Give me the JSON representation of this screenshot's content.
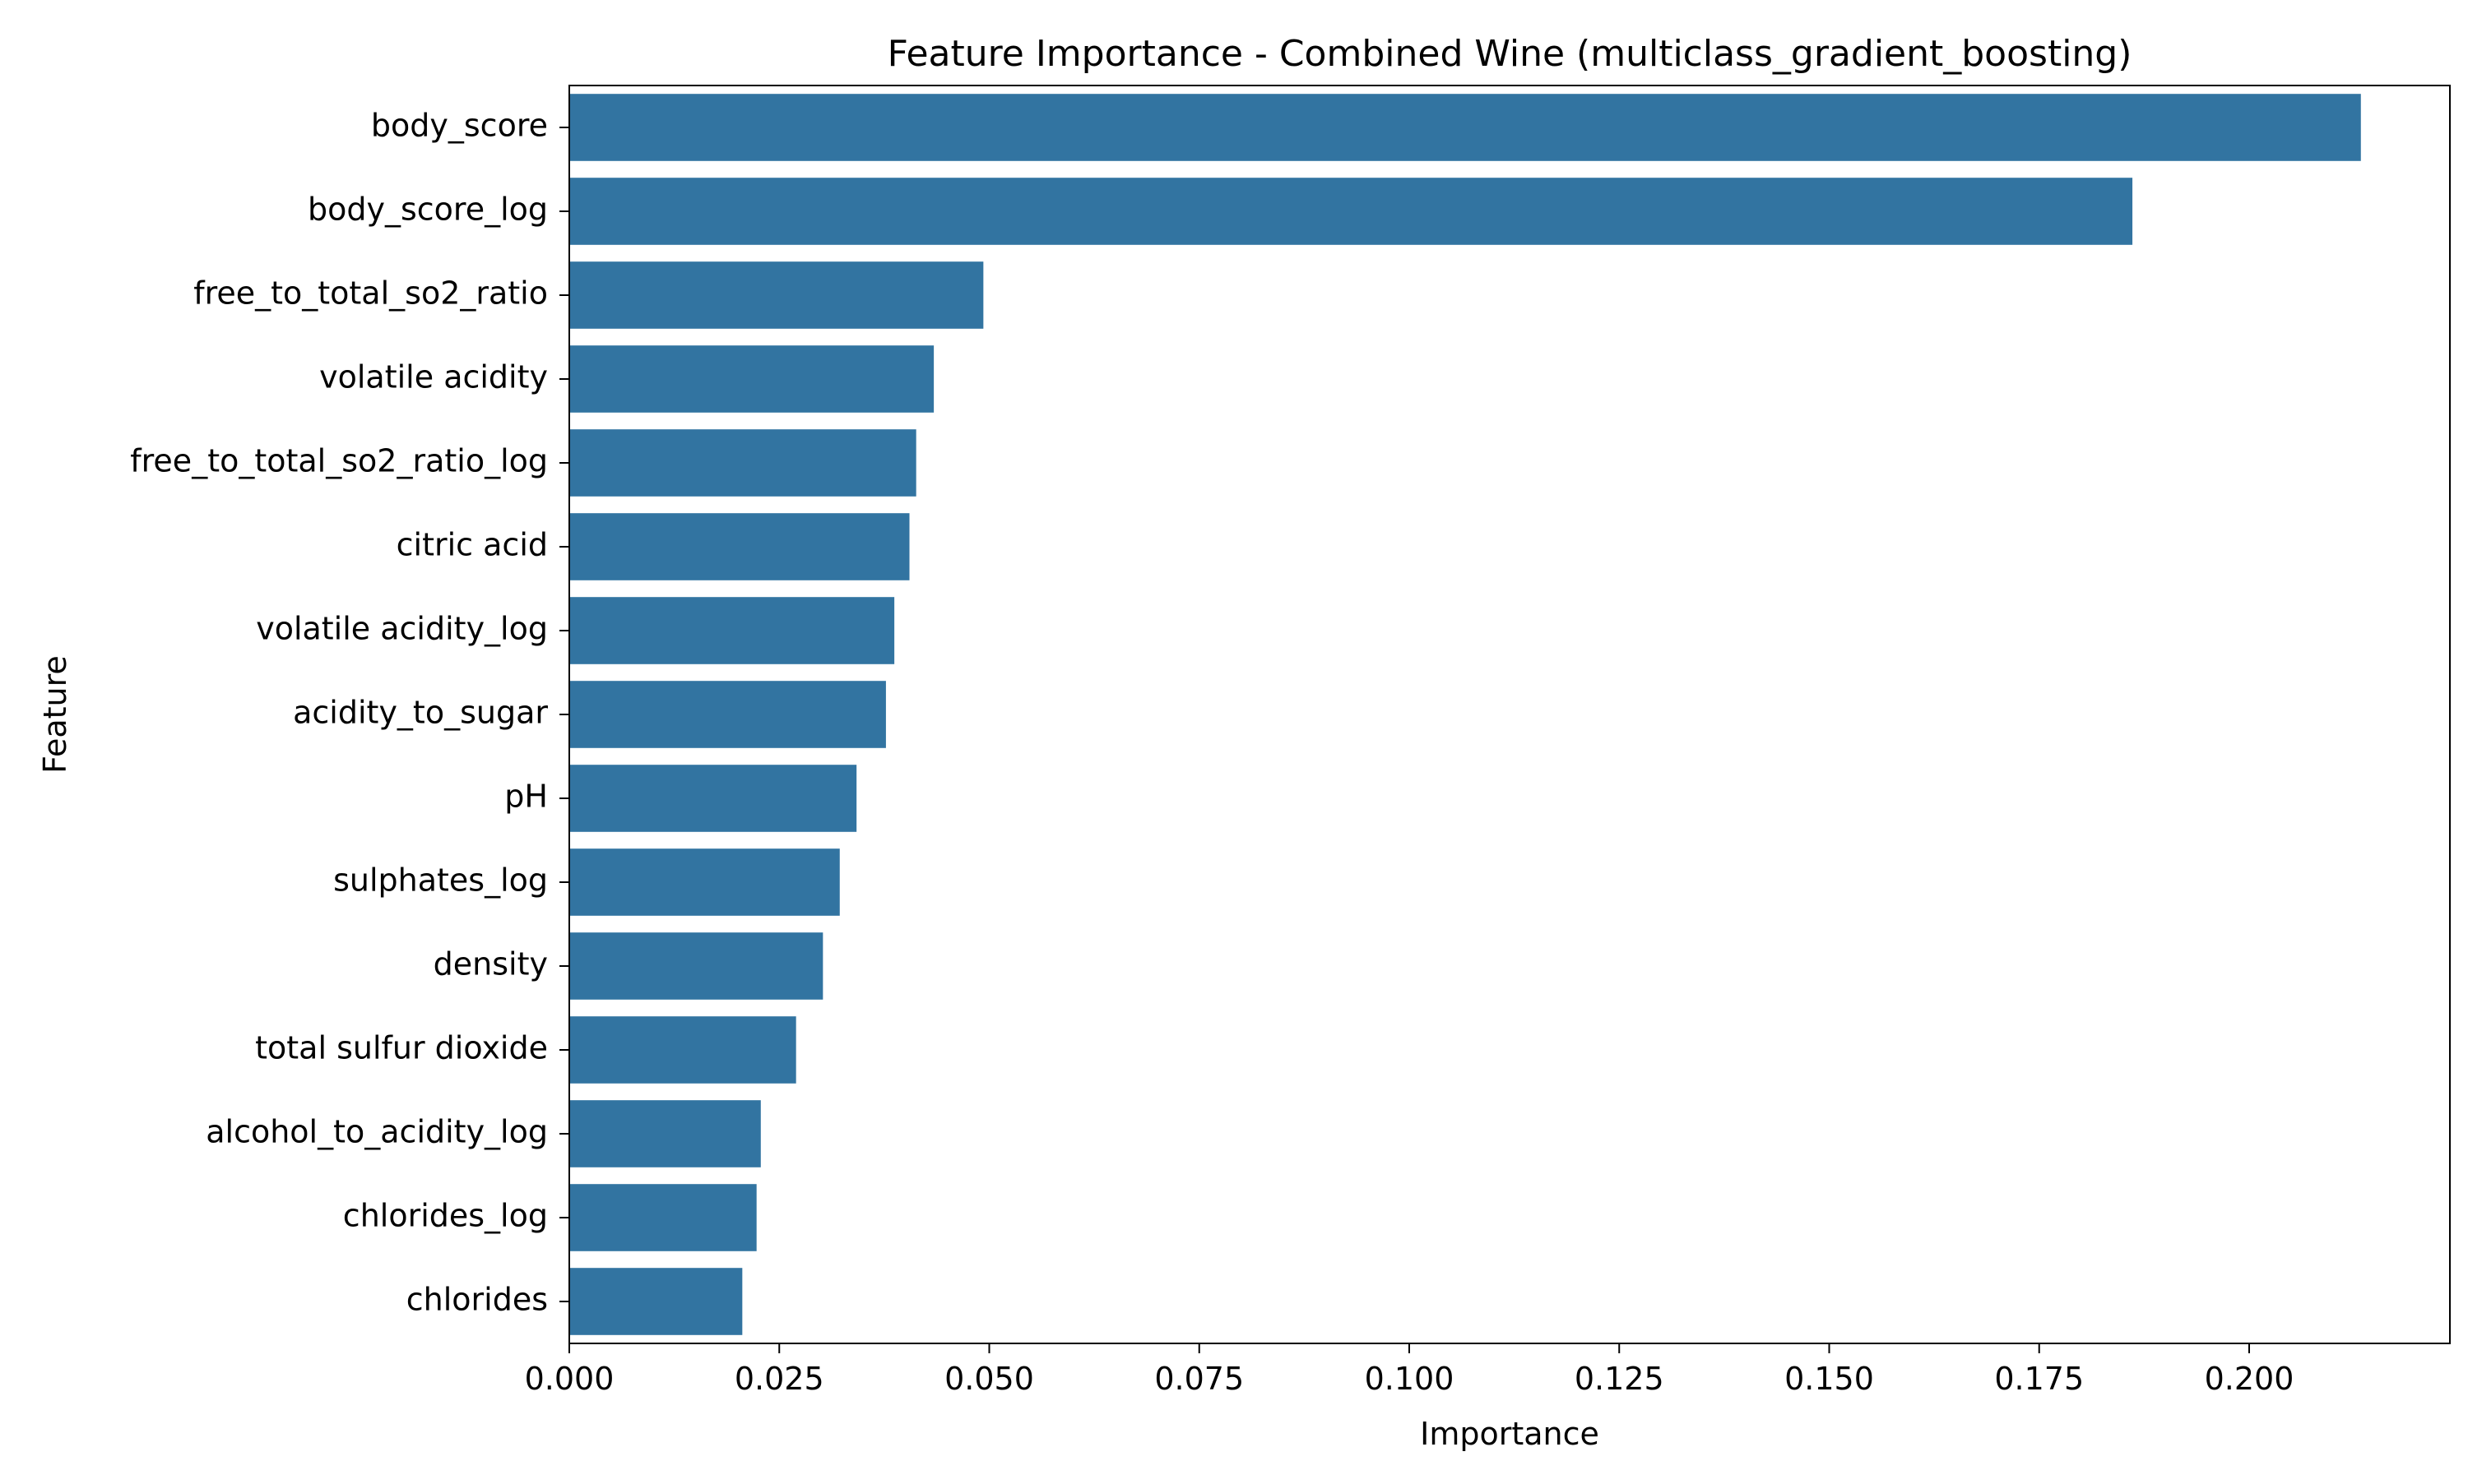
{
  "chart_data": {
    "type": "bar",
    "orientation": "horizontal",
    "title": "Feature Importance - Combined Wine (multiclass_gradient_boosting)",
    "xlabel": "Importance",
    "ylabel": "Feature",
    "categories": [
      "body_score",
      "body_score_log",
      "free_to_total_so2_ratio",
      "volatile acidity",
      "free_to_total_so2_ratio_log",
      "citric acid",
      "volatile acidity_log",
      "acidity_to_sugar",
      "pH",
      "sulphates_log",
      "density",
      "total sulfur dioxide",
      "alcohol_to_acidity_log",
      "chlorides_log",
      "chlorides"
    ],
    "values": [
      0.2133,
      0.1861,
      0.0493,
      0.0434,
      0.0413,
      0.0405,
      0.0387,
      0.0377,
      0.0342,
      0.0322,
      0.0302,
      0.027,
      0.0228,
      0.0223,
      0.0206
    ],
    "xlim": [
      0,
      0.2239
    ],
    "xticks": [
      "0.000",
      "0.025",
      "0.050",
      "0.075",
      "0.100",
      "0.125",
      "0.150",
      "0.175",
      "0.200"
    ],
    "grid": false,
    "legend": "none",
    "bar_color": "#3274a1"
  }
}
